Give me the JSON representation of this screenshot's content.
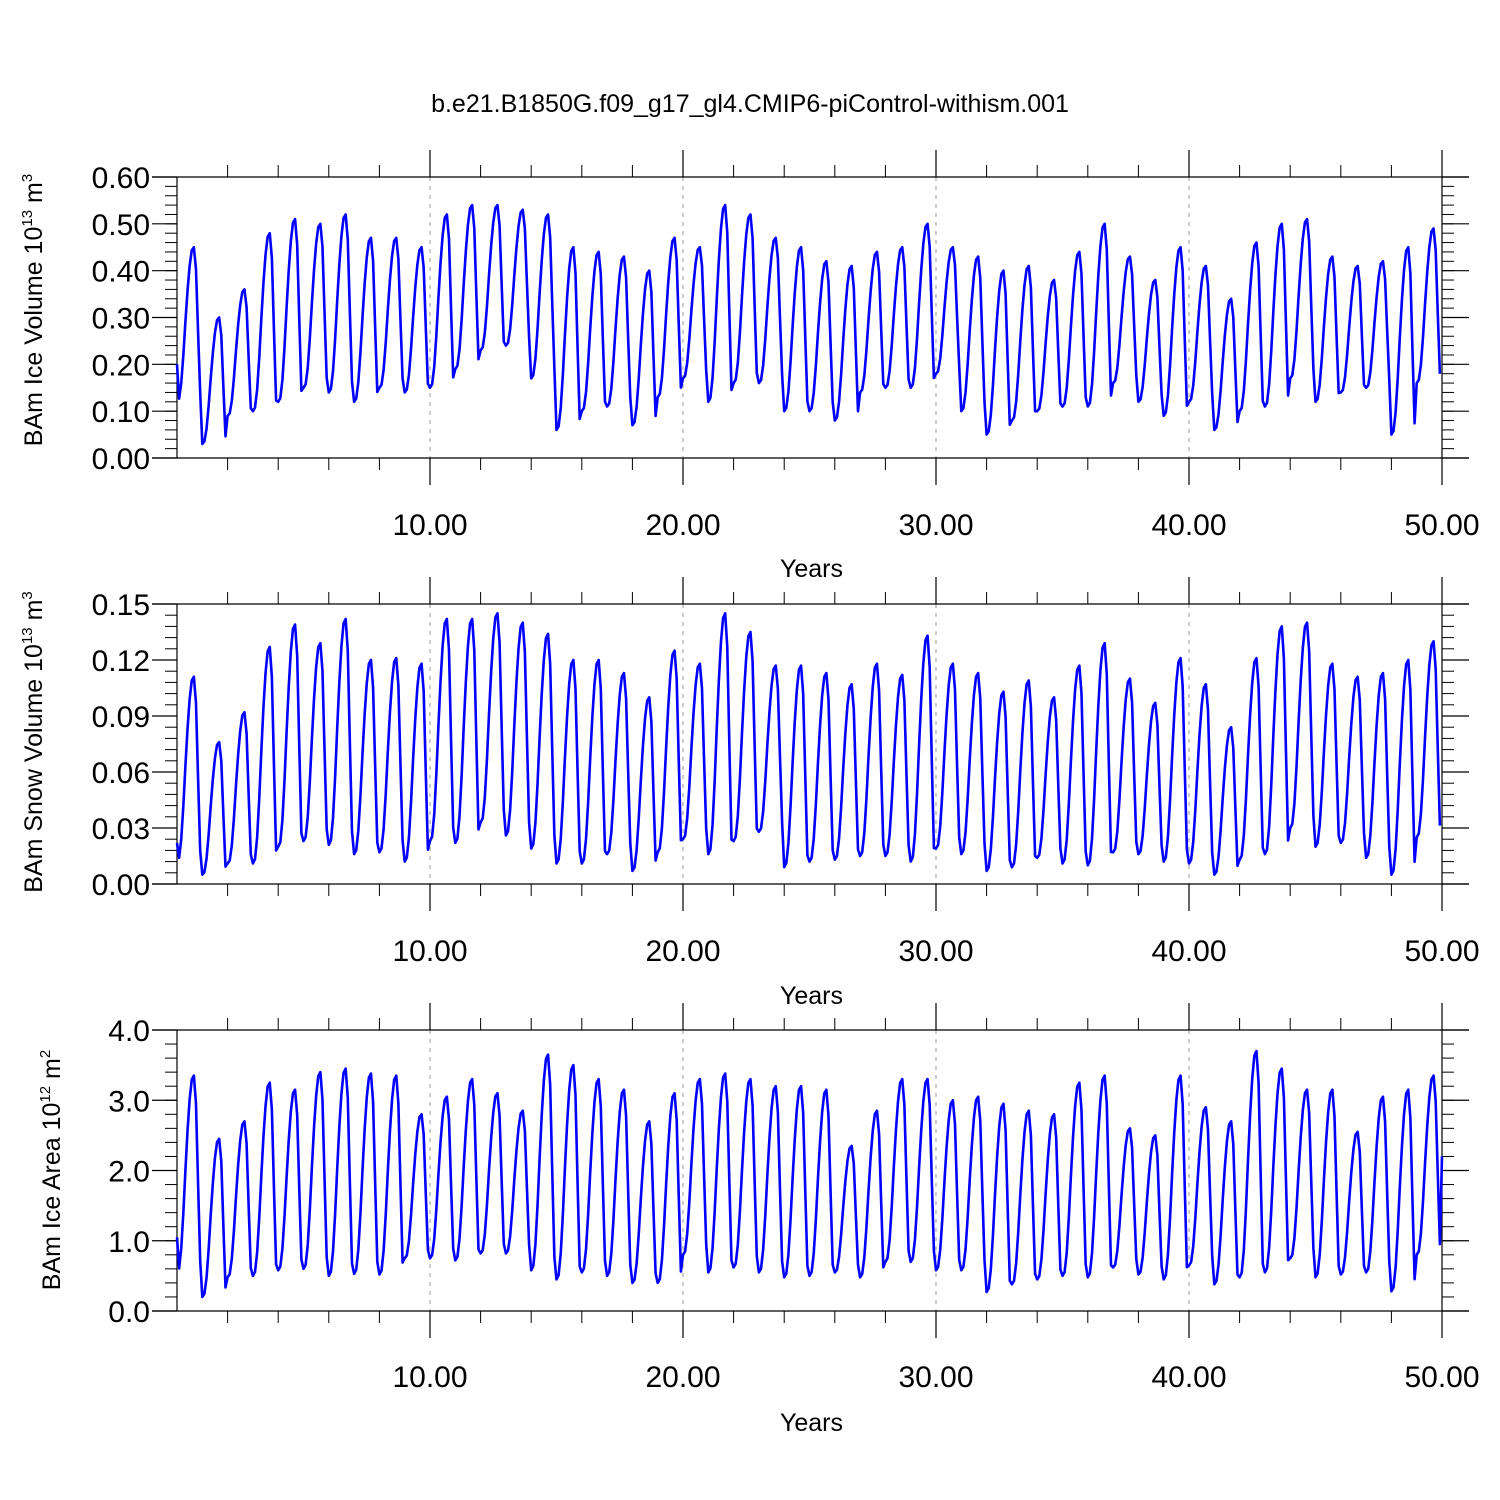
{
  "title": "b.e21.B1850G.f09_g17_gl4.CMIP6-piControl-withism.001",
  "colors": {
    "line": "#0000ff",
    "axis": "#000000",
    "grid": "#999999"
  },
  "chart_data": [
    {
      "type": "line",
      "ylabel": {
        "text": "BAm Ice Volume 10",
        "exp": "13",
        "unit": " m",
        "unit_exp": "3"
      },
      "xlabel": "Years",
      "xlim": [
        0,
        50
      ],
      "ylim": [
        0,
        0.6
      ],
      "xticks": [
        10,
        20,
        30,
        40,
        50
      ],
      "xtick_labels": [
        "10.00",
        "20.00",
        "30.00",
        "40.00",
        "50.00"
      ],
      "yticks": [
        0,
        0.1,
        0.2,
        0.3,
        0.4,
        0.5,
        0.6
      ],
      "ytick_labels": [
        "0.00",
        "0.10",
        "0.20",
        "0.30",
        "0.40",
        "0.50",
        "0.60"
      ],
      "grid": "vertical dashed at major x ticks",
      "series": [
        {
          "sampling": "monthly, starting at year 0",
          "annual_max": [
            0.45,
            0.3,
            0.36,
            0.48,
            0.51,
            0.5,
            0.52,
            0.47,
            0.47,
            0.45,
            0.52,
            0.54,
            0.54,
            0.53,
            0.52,
            0.45,
            0.44,
            0.43,
            0.4,
            0.47,
            0.45,
            0.54,
            0.52,
            0.47,
            0.45,
            0.42,
            0.41,
            0.44,
            0.45,
            0.5,
            0.45,
            0.43,
            0.4,
            0.41,
            0.38,
            0.44,
            0.5,
            0.43,
            0.38,
            0.45,
            0.41,
            0.34,
            0.46,
            0.5,
            0.51,
            0.43,
            0.41,
            0.42,
            0.45,
            0.49
          ],
          "annual_min": [
            0.12,
            0.03,
            0.09,
            0.1,
            0.12,
            0.15,
            0.14,
            0.12,
            0.15,
            0.14,
            0.15,
            0.19,
            0.23,
            0.24,
            0.17,
            0.06,
            0.1,
            0.11,
            0.07,
            0.13,
            0.17,
            0.12,
            0.16,
            0.16,
            0.1,
            0.1,
            0.08,
            0.14,
            0.15,
            0.15,
            0.18,
            0.1,
            0.05,
            0.08,
            0.1,
            0.11,
            0.11,
            0.16,
            0.12,
            0.09,
            0.12,
            0.06,
            0.1,
            0.11,
            0.17,
            0.12,
            0.14,
            0.15,
            0.05,
            0.16
          ],
          "start": 0.2
        }
      ]
    },
    {
      "type": "line",
      "ylabel": {
        "text": "BAm Snow Volume 10",
        "exp": "13",
        "unit": " m",
        "unit_exp": "3"
      },
      "xlabel": "Years",
      "xlim": [
        0,
        50
      ],
      "ylim": [
        0,
        0.15
      ],
      "xticks": [
        10,
        20,
        30,
        40,
        50
      ],
      "xtick_labels": [
        "10.00",
        "20.00",
        "30.00",
        "40.00",
        "50.00"
      ],
      "yticks": [
        0,
        0.03,
        0.06,
        0.09,
        0.12,
        0.15
      ],
      "ytick_labels": [
        "0.00",
        "0.03",
        "0.06",
        "0.09",
        "0.12",
        "0.15"
      ],
      "grid": "vertical dashed at major x ticks",
      "series": [
        {
          "sampling": "monthly, starting at year 0",
          "annual_max": [
            0.111,
            0.076,
            0.092,
            0.127,
            0.139,
            0.129,
            0.142,
            0.12,
            0.121,
            0.118,
            0.142,
            0.142,
            0.145,
            0.14,
            0.134,
            0.12,
            0.12,
            0.113,
            0.1,
            0.125,
            0.118,
            0.145,
            0.135,
            0.117,
            0.117,
            0.113,
            0.107,
            0.118,
            0.112,
            0.133,
            0.118,
            0.113,
            0.103,
            0.109,
            0.1,
            0.117,
            0.129,
            0.11,
            0.097,
            0.121,
            0.107,
            0.084,
            0.121,
            0.138,
            0.14,
            0.118,
            0.111,
            0.113,
            0.12,
            0.13
          ],
          "annual_min": [
            0.012,
            0.005,
            0.011,
            0.011,
            0.02,
            0.023,
            0.021,
            0.016,
            0.017,
            0.012,
            0.023,
            0.022,
            0.033,
            0.026,
            0.019,
            0.011,
            0.011,
            0.016,
            0.007,
            0.017,
            0.024,
            0.016,
            0.023,
            0.028,
            0.009,
            0.012,
            0.013,
            0.015,
            0.015,
            0.012,
            0.019,
            0.016,
            0.007,
            0.009,
            0.014,
            0.011,
            0.01,
            0.017,
            0.016,
            0.012,
            0.011,
            0.005,
            0.013,
            0.016,
            0.03,
            0.02,
            0.022,
            0.014,
            0.005,
            0.025
          ],
          "start": 0.022
        }
      ]
    },
    {
      "type": "line",
      "ylabel": {
        "text": "BAm Ice Area 10",
        "exp": "12",
        "unit": " m",
        "unit_exp": "2"
      },
      "xlabel": "Years",
      "xlim": [
        0,
        50
      ],
      "ylim": [
        0,
        4
      ],
      "xticks": [
        10,
        20,
        30,
        40,
        50
      ],
      "xtick_labels": [
        "10.00",
        "20.00",
        "30.00",
        "40.00",
        "50.00"
      ],
      "yticks": [
        0,
        1,
        2,
        3,
        4
      ],
      "ytick_labels": [
        "0.0",
        "1.0",
        "2.0",
        "3.0",
        "4.0"
      ],
      "grid": "vertical dashed at major x ticks",
      "series": [
        {
          "sampling": "monthly, starting at year 0",
          "annual_max": [
            3.35,
            2.45,
            2.7,
            3.25,
            3.15,
            3.4,
            3.45,
            3.38,
            3.35,
            2.8,
            3.05,
            3.3,
            3.1,
            2.85,
            3.65,
            3.5,
            3.3,
            3.15,
            2.7,
            3.1,
            3.3,
            3.38,
            3.3,
            3.2,
            3.2,
            3.15,
            2.35,
            2.85,
            3.3,
            3.3,
            3.0,
            3.05,
            2.95,
            2.85,
            2.8,
            3.25,
            3.35,
            2.6,
            2.5,
            3.35,
            2.9,
            2.7,
            3.7,
            3.45,
            3.15,
            3.15,
            2.55,
            3.05,
            3.15,
            3.35
          ],
          "annual_min": [
            0.55,
            0.2,
            0.48,
            0.5,
            0.58,
            0.6,
            0.5,
            0.53,
            0.52,
            0.75,
            0.75,
            0.72,
            0.82,
            0.82,
            0.58,
            0.45,
            0.55,
            0.5,
            0.4,
            0.4,
            0.8,
            0.55,
            0.62,
            0.55,
            0.48,
            0.5,
            0.55,
            0.48,
            0.7,
            0.7,
            0.58,
            0.58,
            0.27,
            0.38,
            0.45,
            0.5,
            0.48,
            0.62,
            0.52,
            0.45,
            0.65,
            0.38,
            0.48,
            0.55,
            0.75,
            0.48,
            0.52,
            0.55,
            0.28,
            0.8
          ],
          "start": 1.05,
          "end": 2.2
        }
      ]
    }
  ]
}
